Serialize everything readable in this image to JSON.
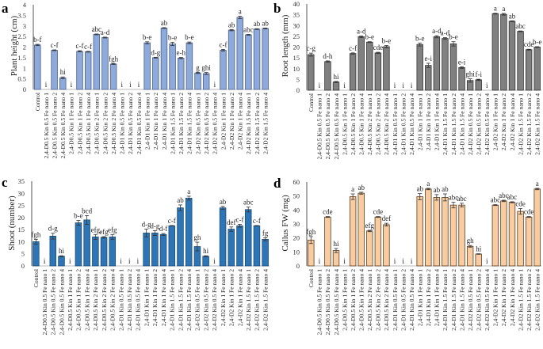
{
  "chart_data": [
    {
      "panel": "a",
      "type": "bar",
      "title": "",
      "xlabel": "",
      "ylabel": "Plant height (cm)",
      "ylim": [
        0,
        4
      ],
      "yticks": [
        "0",
        "0.5",
        "1",
        "1.5",
        "2",
        "2.5",
        "3",
        "3.5",
        "4"
      ],
      "ytick_values": [
        0,
        0.5,
        1,
        1.5,
        2,
        2.5,
        3,
        3.5,
        4
      ],
      "color": "#8eaadb",
      "grid": false,
      "categories": [
        "Control",
        "2,4-D 0.5 Kin 0.5 Fe nano 1",
        "2,4-D 0.5 Kin 0.5 Fe nano 2",
        "2,4-D 0.5 Kin 0.5 Fe nano 4",
        "2,4-D 0.5 Kin 1 Fe nano 1",
        "2,4-D 0.5 Kin 1 Fe nano 2",
        "2,4-D 0.5 Kin 1 Fe nano 4",
        "2,4-D 0.5 Kin 2 Fe nano 1",
        "2,4-D 0.5 Kin 2 Fe nano 2",
        "2,4-D 0.5 Kin 2 Fe nano 4",
        "2,4-D 1 Kin 0.5 Fe nano 1",
        "2,4-D 1 Kin 0.5 Fe nano 2",
        "2,4-D 1 Kin 0.5 Fe nano 4",
        "2,4-D 1 Kin 1 Fe nano 1",
        "2,4-D 1 Kin 1 Fe nano 2",
        "2,4-D 1 Kin 1 Fe nano 4",
        "2,4-D 1 Kin 1.5 Fe nano 1",
        "2,4-D 1 Kin 1.5 Fe nano 2",
        "2,4-D 1 Kin 1.5 Fe nano 4",
        "2,4-D 2 Kin 0.5 Fe nano 1",
        "2,4-D 2 Kin 0.5 Fe nano 2",
        "2,4-D 2 Kin 0.5 Fe nano 4",
        "2,4-D 2 Kin 1 Fe nano 1",
        "2,4-D 2 Kin 1 Fe nano 2",
        "2,4-D 2 Kin 1 Fe nano 4",
        "2,4-D 2 Kin 1.5 Fe nano 1",
        "2,4-D 2 Kin 1.5 Fe nano 2",
        "2,4-D 2 Kin 1.5 Fe nano 4"
      ],
      "values": [
        2.1,
        0,
        1.85,
        0.55,
        0,
        1.8,
        1.78,
        2.6,
        2.45,
        1.2,
        0,
        0,
        0,
        2.2,
        1.5,
        2.9,
        2.15,
        1.48,
        2.2,
        0.78,
        0.75,
        0,
        1.85,
        2.8,
        3.4,
        2.58,
        2.85,
        2.88
      ],
      "errors": [
        0.03,
        0,
        0.02,
        0.04,
        0,
        0.03,
        0.02,
        0.02,
        0.02,
        0.02,
        0,
        0,
        0,
        0.05,
        0.02,
        0.02,
        0.08,
        0.03,
        0.04,
        0.03,
        0.05,
        0,
        0.04,
        0.03,
        0.06,
        0.02,
        0.02,
        0.02
      ],
      "letters": [
        "b-f",
        "i",
        "c-f",
        "hi",
        "i",
        "c-f",
        "c-f",
        "abc",
        "a-d",
        "fgh",
        "i",
        "i",
        "i",
        "b-e",
        "d-g",
        "ab",
        "b-e",
        "e-h",
        "b-e",
        "g",
        "ghi",
        "i",
        "c-f",
        "ab",
        "a",
        "abc",
        "ab",
        "ab"
      ]
    },
    {
      "panel": "b",
      "type": "bar",
      "title": "",
      "xlabel": "",
      "ylabel": "Root length (mm)",
      "ylim": [
        0,
        40
      ],
      "yticks": [
        "0",
        "5",
        "10",
        "15",
        "20",
        "25",
        "30",
        "35",
        "40"
      ],
      "ytick_values": [
        0,
        5,
        10,
        15,
        20,
        25,
        30,
        35,
        40
      ],
      "color": "#808080",
      "grid": false,
      "categories": [
        "Control",
        "2,4-D 0.5 Kin 0.5 Fe nano 1",
        "2,4-D 0.5 Kin 0.5 Fe nano 2",
        "2,4-D 0.5 Kin 0.5 Fe nano 4",
        "2,4-D 0.5 Kin 1 Fe nano 1",
        "2,4-D 0.5 Kin 1 Fe nano 2",
        "2,4-D 0.5 Kin 1 Fe nano 4",
        "2,4-D 0.5 Kin 2 Fe nano 1",
        "2,4-D 0.5 Kin 2 Fe nano 2",
        "2,4-D 0.5 Kin 2 Fe nano 4",
        "2,4-D 1 Kin 0.5 Fe nano 1",
        "2,4-D 1 Kin 0.5 Fe nano 2",
        "2,4-D 1 Kin 0.5 Fe nano 4",
        "2,4-D 1 Kin 1 Fe nano 1",
        "2,4-D 1 Kin 1 Fe nano 2",
        "2,4-D 1 Kin 1 Fe nano 4",
        "2,4-D 1 Kin 1.5 Fe nano 1",
        "2,4-D 1 Kin 1.5 Fe nano 2",
        "2,4-D 1 Kin 1.5 Fe nano 4",
        "2,4-D 2 Kin 0.5 Fe nano 1",
        "2,4-D 2 Kin 0.5 Fe nano 2",
        "2,4-D 2 Kin 0.5 Fe nano 4",
        "2,4-D 2 Kin 1 Fe nano 1",
        "2,4-D 2 Kin 1 Fe nano 2",
        "2,4-D 2 Kin 1 Fe nano 4",
        "2,4-D 2 Kin 1.5 Fe nano 1",
        "2,4-D 2 Kin 1.5 Fe nano 2",
        "2,4-D 2 Kin 1.5 Fe nano 4"
      ],
      "values": [
        16.5,
        0,
        13.3,
        3.8,
        0,
        17,
        24.8,
        22.3,
        17.3,
        20.2,
        0,
        0,
        0,
        21.2,
        11.5,
        24.8,
        24,
        21.5,
        10.5,
        4.5,
        4.8,
        0,
        35.5,
        35.2,
        32,
        27.3,
        18.8,
        20
      ],
      "errors": [
        0.7,
        0,
        0.3,
        0.3,
        0,
        0.3,
        0.4,
        0.2,
        0.3,
        0.5,
        0,
        0,
        0,
        0.7,
        1.0,
        0.5,
        0.4,
        1.0,
        0.4,
        0.8,
        0.3,
        0,
        0.2,
        0.4,
        0.2,
        0.2,
        0.2,
        0.2
      ],
      "letters": [
        "c-g",
        "i",
        "d-h",
        "hi",
        "i",
        "c-f",
        "a-d",
        "b-e",
        "cde",
        "b-e",
        "i",
        "i",
        "i",
        "b-e",
        "e-i",
        "a-d",
        "a-d",
        "b-e",
        "e-i",
        "ghi",
        "f-i",
        "i",
        "a",
        "a",
        "ab",
        "abc",
        "cde",
        "b-e"
      ]
    },
    {
      "panel": "c",
      "type": "bar",
      "title": "",
      "xlabel": "",
      "ylabel": "Shoot (number)",
      "ylim": [
        0,
        35
      ],
      "yticks": [
        "0",
        "5",
        "10",
        "15",
        "20",
        "25",
        "30",
        "35"
      ],
      "ytick_values": [
        0,
        5,
        10,
        15,
        20,
        25,
        30,
        35
      ],
      "color": "#2e75b6",
      "grid": false,
      "categories": [
        "Control",
        "2,4-D 0.5 Kin 0.5 Fe nano 1",
        "2,4-D 0.5 Kin 0.5 Fe nano 2",
        "2,4-D 0.5 Kin 0.5 Fe nano 4",
        "2,4-D 0.5 Kin 1 Fe nano 1",
        "2,4-D 0.5 Kin 1 Fe nano 2",
        "2,4-D 0.5 Kin 1 Fe nano 4",
        "2,4-D 0.5 Kin 2 Fe nano 1",
        "2,4-D 0.5 Kin 2 Fe nano 2",
        "2,4-D 0.5 Kin 2 Fe nano 4",
        "2,4-D 1 Kin 0.5 Fe nano 1",
        "2,4-D 1 Kin 0.5 Fe nano 2",
        "2,4-D 1 Kin 0.5 Fe nano 4",
        "2,4-D 1 Kin 1 Fe nano 1",
        "2,4-D 1 Kin 1 Fe nano 2",
        "2,4-D 1 Kin 1 Fe nano 4",
        "2,4-D 1 Kin 1.5 Fe nano 1",
        "2,4-D 1 Kin 1.5 Fe nano 2",
        "2,4-D 1 Kin 1.5 Fe nano 4",
        "2,4-D 2 Kin 0.5 Fe nano 1",
        "2,4-D 2 Kin 0.5 Fe nano 2",
        "2,4-D 2 Kin 0.5 Fe nano 4",
        "2,4-D 2 Kin 1 Fe nano 1",
        "2,4-D 2 Kin 1 Fe nano 2",
        "2,4-D 2 Kin 1 Fe nano 4",
        "2,4-D 2 Kin 1.5 Fe nano 1",
        "2,4-D 2 Kin 1.5 Fe nano 2",
        "2,4-D 2 Kin 1.5 Fe nano 4"
      ],
      "values": [
        10,
        0,
        12.3,
        4,
        0,
        17.8,
        19,
        12,
        11.8,
        12,
        0,
        0,
        0,
        13.6,
        13.6,
        13,
        16.6,
        24,
        28,
        8,
        4,
        0,
        24,
        15.2,
        16.6,
        23.3,
        16.6,
        11
      ],
      "errors": [
        1.0,
        0,
        1.2,
        0.2,
        0,
        1.0,
        1.8,
        1.0,
        0.3,
        1.0,
        0,
        0,
        0,
        1.6,
        1.0,
        0.4,
        0.1,
        1.2,
        0.8,
        1.8,
        0.2,
        0,
        0.6,
        0.9,
        0.6,
        1.0,
        0.1,
        0.6
      ],
      "letters": [
        "fgh",
        "i",
        "d-g",
        "hi",
        "i",
        "b-e",
        "bcd",
        "efg",
        "efg",
        "efg",
        "i",
        "i",
        "i",
        "d-g",
        "d-g",
        "d-f",
        "c-f",
        "ab",
        "a",
        "gh",
        "hi",
        "i",
        "ab",
        "def",
        "c-f",
        "abc",
        "c-f",
        "fg"
      ]
    },
    {
      "panel": "d",
      "type": "bar",
      "title": "",
      "xlabel": "",
      "ylabel": "Callus FW (mg)",
      "ylim": [
        0,
        60
      ],
      "yticks": [
        "0",
        "10",
        "20",
        "30",
        "40",
        "50",
        "60"
      ],
      "ytick_values": [
        0,
        10,
        20,
        30,
        40,
        50,
        60
      ],
      "color": "#f8cba0",
      "grid": false,
      "categories": [
        "Control",
        "2,4-D 0.5 Kin 0.5 Fe nano 1",
        "2,4-D 0.5 Kin 0.5 Fe nano 2",
        "2,4-D 0.5 Kin 0.5 Fe nano 4",
        "2,4-D 0.5 Kin 1 Fe nano 1",
        "2,4-D 0.5 Kin 1 Fe nano 2",
        "2,4-D 0.5 Kin 1 Fe nano 4",
        "2,4-D 0.5 Kin 2 Fe nano 1",
        "2,4-D 0.5 Kin 2 Fe nano 2",
        "2,4-D 0.5 Kin 2 Fe nano 4",
        "2,4-D 1 Kin 0.5 Fe nano 1",
        "2,4-D 1 Kin 0.5 Fe nano 2",
        "2,4-D 1 Kin 0.5 Fe nano 4",
        "2,4-D 1 Kin 1 Fe nano 1",
        "2,4-D 1 Kin 1 Fe nano 2",
        "2,4-D 1 Kin 1 Fe nano 4",
        "2,4-D 1 Kin 1.5 Fe nano 1",
        "2,4-D 1 Kin 1.5 Fe nano 2",
        "2,4-D 1 Kin 1.5 Fe nano 4",
        "2,4-D 2 Kin 0.5 Fe nano 1",
        "2,4-D 2 Kin 0.5 Fe nano 2",
        "2,4-D 2 Kin 0.5 Fe nano 4",
        "2,4-D 2 Kin 1 Fe nano 1",
        "2,4-D 2 Kin 1 Fe nano 2",
        "2,4-D 2 Kin 1 Fe nano 4",
        "2,4-D 2 Kin 1.5 Fe nano 1",
        "2,4-D 2 Kin 1.5 Fe nano 2",
        "2,4-D 2 Kin 1.5 Fe nano 4"
      ],
      "values": [
        18.5,
        0,
        35,
        11,
        0,
        49.5,
        52,
        25,
        35,
        29.5,
        0,
        0,
        0,
        49.5,
        55,
        49,
        49,
        43.5,
        43.5,
        14,
        8.5,
        0,
        43.5,
        46.5,
        45.5,
        39,
        35,
        55
      ],
      "errors": [
        2.5,
        0,
        0.3,
        1.5,
        0,
        2.0,
        0.7,
        0.5,
        0.3,
        1.0,
        0,
        0,
        0,
        2.2,
        0.5,
        2.0,
        2.5,
        2.0,
        1.3,
        0.6,
        0.2,
        0,
        0.3,
        0.5,
        0.4,
        2.0,
        0.3,
        0.5
      ],
      "letters": [
        "fgh",
        "i",
        "cde",
        "hi",
        "i",
        "a",
        "ab",
        "efg",
        "cde",
        "def",
        "i",
        "i",
        "i",
        "ab",
        "a",
        "ab",
        "ab",
        "abc",
        "abc",
        "gh",
        "hi",
        "i",
        "abc",
        "abc",
        "abc",
        "cde",
        "cde",
        "a"
      ]
    }
  ]
}
